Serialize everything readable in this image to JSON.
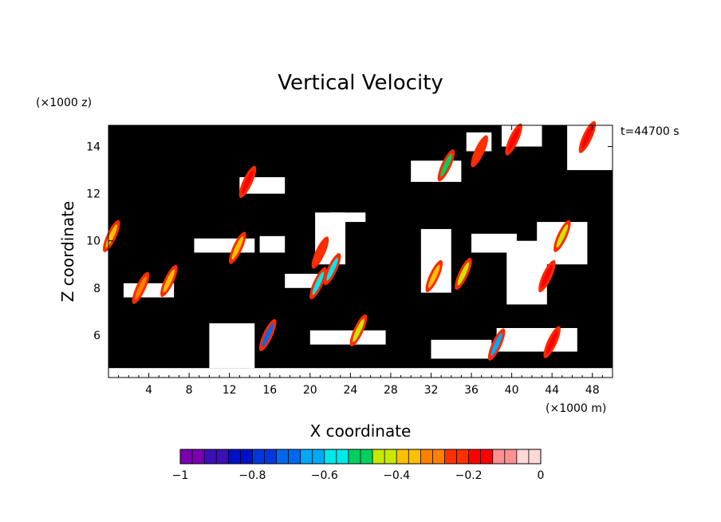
{
  "chart_data": {
    "type": "heatmap",
    "title": "Vertical Velocity",
    "xlabel": "X coordinate",
    "ylabel": "Z coordinate",
    "x_unit": "(×1000 m)",
    "y_unit": "(×1000 z)",
    "time_label": "t=44700 s",
    "xlim": [
      0,
      50
    ],
    "ylim": [
      4.2,
      14.9
    ],
    "x_ticks": [
      4,
      8,
      12,
      16,
      20,
      24,
      28,
      32,
      36,
      40,
      44,
      48
    ],
    "y_ticks": [
      6,
      8,
      10,
      12,
      14
    ],
    "background_color": "#000000",
    "colorbar": {
      "ticks": [
        -1,
        -0.8,
        -0.6,
        -0.4,
        -0.2,
        0
      ],
      "tick_labels": [
        "−1",
        "−0.8",
        "−0.6",
        "−0.4",
        "−0.2",
        "0"
      ],
      "range": [
        -1,
        0
      ],
      "colors": [
        "#7a00b0",
        "#3c0fb8",
        "#0010c8",
        "#0038e0",
        "#0068f0",
        "#00a8f8",
        "#00e8e8",
        "#00d060",
        "#c8e800",
        "#ffc000",
        "#ff8000",
        "#ff3000",
        "#ff0000",
        "#ff9090",
        "#ffd8d8"
      ]
    },
    "regions": [
      {
        "x": [
          0.0,
          50.0
        ],
        "z": [
          4.2,
          4.6
        ],
        "kind": "white"
      },
      {
        "x": [
          20.5,
          23.5
        ],
        "z": [
          9.0,
          11.2
        ],
        "kind": "white"
      },
      {
        "x": [
          36.0,
          40.5
        ],
        "z": [
          9.5,
          10.3
        ],
        "kind": "white"
      },
      {
        "x": [
          39.5,
          43.5
        ],
        "z": [
          7.3,
          10.0
        ],
        "kind": "white"
      },
      {
        "x": [
          42.5,
          47.5
        ],
        "z": [
          9.0,
          10.8
        ],
        "kind": "white"
      },
      {
        "x": [
          31.0,
          34.0
        ],
        "z": [
          7.8,
          10.5
        ],
        "kind": "white"
      },
      {
        "x": [
          17.5,
          21.0
        ],
        "z": [
          8.0,
          8.6
        ],
        "kind": "white"
      },
      {
        "x": [
          15.0,
          17.5
        ],
        "z": [
          9.5,
          10.2
        ],
        "kind": "white"
      },
      {
        "x": [
          8.5,
          14.5
        ],
        "z": [
          9.5,
          10.1
        ],
        "kind": "white"
      },
      {
        "x": [
          10.0,
          14.5
        ],
        "z": [
          4.6,
          6.5
        ],
        "kind": "white"
      },
      {
        "x": [
          20.0,
          27.5
        ],
        "z": [
          5.6,
          6.2
        ],
        "kind": "white"
      },
      {
        "x": [
          32.0,
          38.0
        ],
        "z": [
          5.0,
          5.8
        ],
        "kind": "white"
      },
      {
        "x": [
          38.5,
          46.5
        ],
        "z": [
          5.3,
          6.3
        ],
        "kind": "white"
      },
      {
        "x": [
          1.5,
          6.5
        ],
        "z": [
          7.6,
          8.2
        ],
        "kind": "white"
      },
      {
        "x": [
          13.0,
          17.5
        ],
        "z": [
          12.0,
          12.7
        ],
        "kind": "white"
      },
      {
        "x": [
          35.5,
          38.0
        ],
        "z": [
          13.8,
          14.6
        ],
        "kind": "white"
      },
      {
        "x": [
          39.0,
          43.0
        ],
        "z": [
          14.0,
          14.9
        ],
        "kind": "white"
      },
      {
        "x": [
          45.5,
          50.0
        ],
        "z": [
          13.0,
          14.9
        ],
        "kind": "white"
      },
      {
        "x": [
          30.0,
          35.0
        ],
        "z": [
          12.5,
          13.4
        ],
        "kind": "white"
      },
      {
        "x": [
          22.0,
          25.5
        ],
        "z": [
          10.8,
          11.2
        ],
        "kind": "white"
      }
    ],
    "streaks": [
      {
        "x": 21.0,
        "z": 9.5,
        "value": -0.25
      },
      {
        "x": 22.2,
        "z": 8.8,
        "value": -0.55
      },
      {
        "x": 32.3,
        "z": 8.5,
        "value": -0.35
      },
      {
        "x": 35.2,
        "z": 8.6,
        "value": -0.45
      },
      {
        "x": 43.5,
        "z": 8.5,
        "value": -0.15
      },
      {
        "x": 45.0,
        "z": 10.2,
        "value": -0.45
      },
      {
        "x": 40.2,
        "z": 14.3,
        "value": -0.2
      },
      {
        "x": 36.8,
        "z": 13.8,
        "value": -0.25
      },
      {
        "x": 33.5,
        "z": 13.2,
        "value": -0.5
      },
      {
        "x": 12.8,
        "z": 9.7,
        "value": -0.35
      },
      {
        "x": 13.8,
        "z": 12.5,
        "value": -0.2
      },
      {
        "x": 20.8,
        "z": 8.2,
        "value": -0.55
      },
      {
        "x": 24.8,
        "z": 6.2,
        "value": -0.45
      },
      {
        "x": 15.8,
        "z": 6.0,
        "value": -0.7
      },
      {
        "x": 47.5,
        "z": 14.4,
        "value": -0.15
      },
      {
        "x": 3.2,
        "z": 8.0,
        "value": -0.3
      },
      {
        "x": 6.0,
        "z": 8.3,
        "value": -0.4
      },
      {
        "x": 0.3,
        "z": 10.2,
        "value": -0.35
      },
      {
        "x": 38.5,
        "z": 5.6,
        "value": -0.65
      },
      {
        "x": 44.0,
        "z": 5.7,
        "value": -0.2
      }
    ]
  }
}
